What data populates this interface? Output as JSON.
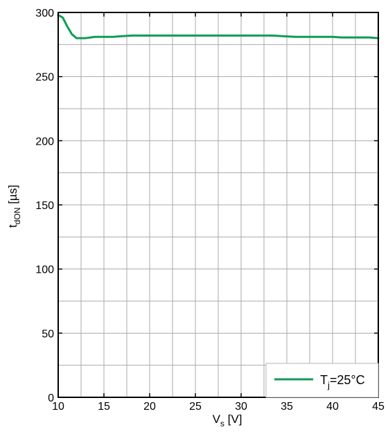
{
  "chart_data": {
    "type": "line",
    "xlim": [
      10,
      45
    ],
    "ylim": [
      0,
      300
    ],
    "x_ticks": [
      10,
      15,
      20,
      25,
      30,
      35,
      40,
      45
    ],
    "y_ticks": [
      0,
      50,
      100,
      150,
      200,
      250,
      300
    ],
    "x_minor_step": 2.5,
    "y_minor_step": 25,
    "grid": true,
    "xlabel": {
      "main": "V",
      "sub": "s",
      "unit": " [V]"
    },
    "ylabel": {
      "main": "t",
      "sub": "dON",
      "unit": " [µs]"
    },
    "legend_position": "bottom-right",
    "series": [
      {
        "name": {
          "main": "T",
          "sub": "j",
          "rest": "=25°C"
        },
        "color": "#0f9b55",
        "points": [
          [
            10,
            298
          ],
          [
            10.5,
            296
          ],
          [
            11,
            289
          ],
          [
            11.5,
            283
          ],
          [
            12,
            280
          ],
          [
            12.5,
            280
          ],
          [
            13,
            280
          ],
          [
            14,
            281
          ],
          [
            15,
            281
          ],
          [
            16,
            281
          ],
          [
            17,
            281.5
          ],
          [
            18,
            282
          ],
          [
            20,
            282
          ],
          [
            22,
            282
          ],
          [
            25,
            282
          ],
          [
            28,
            282
          ],
          [
            30,
            282
          ],
          [
            32,
            282
          ],
          [
            33.5,
            282
          ],
          [
            34.5,
            281.5
          ],
          [
            36,
            281
          ],
          [
            38,
            281
          ],
          [
            40,
            281
          ],
          [
            41,
            280.5
          ],
          [
            42,
            280.5
          ],
          [
            43,
            280.5
          ],
          [
            44,
            280.5
          ],
          [
            45,
            280
          ]
        ]
      }
    ]
  }
}
